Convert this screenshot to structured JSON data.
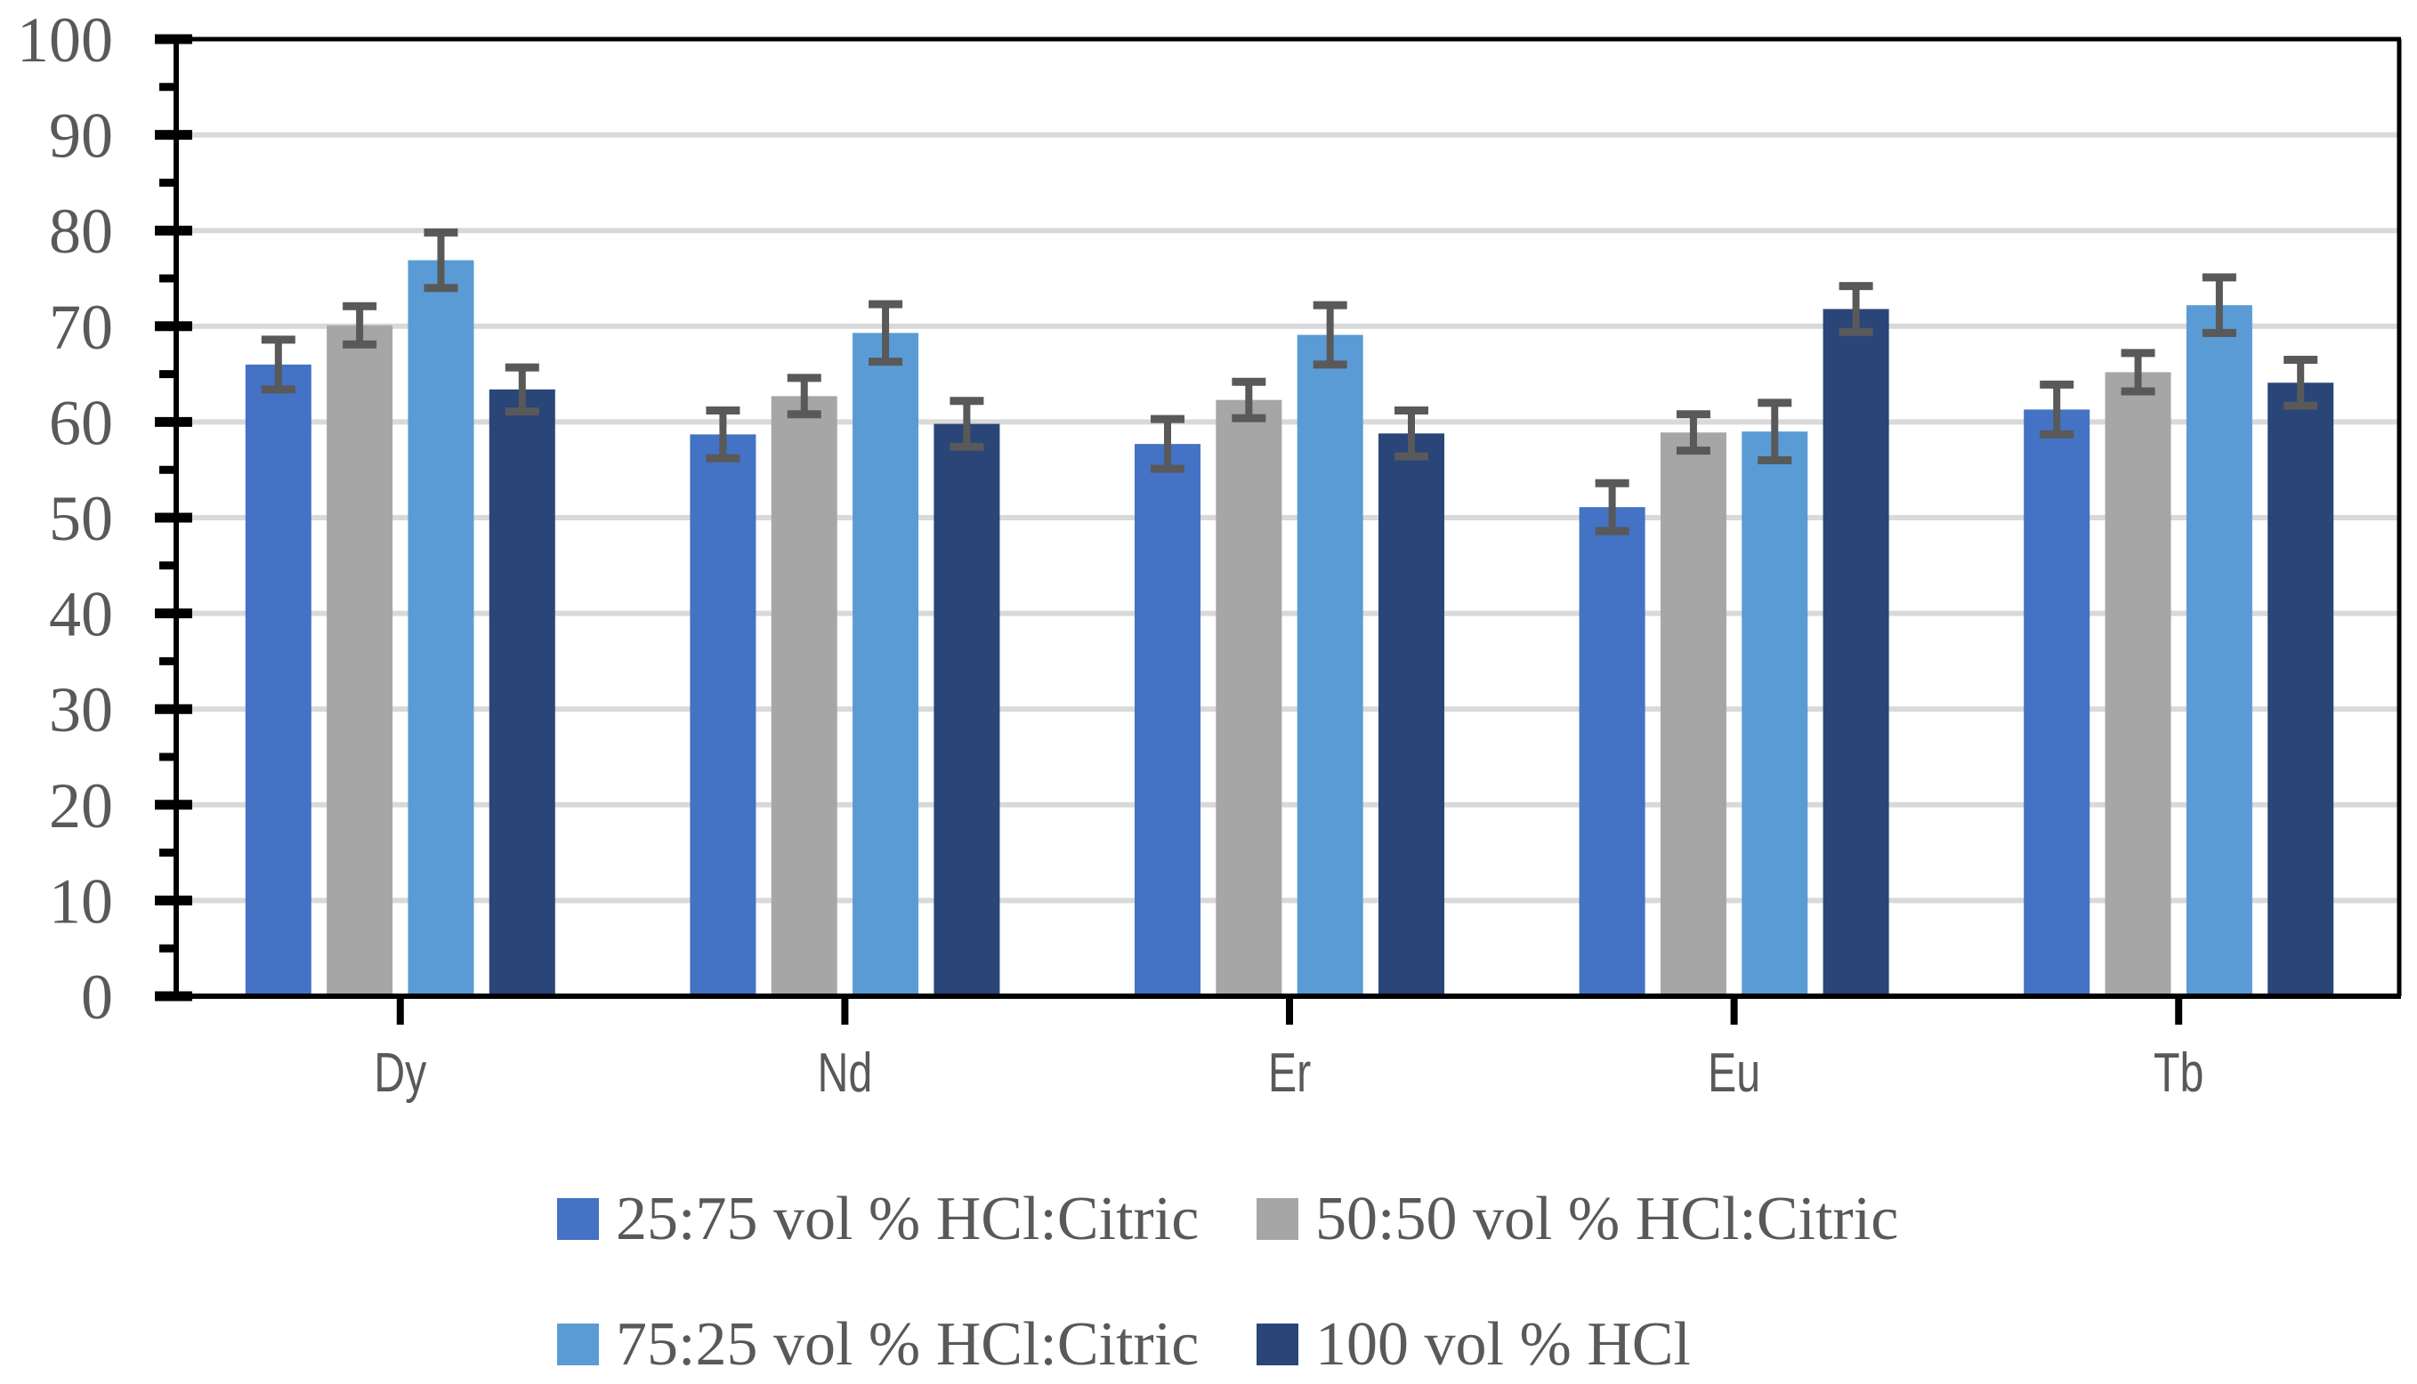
{
  "chart_data": {
    "type": "bar",
    "title": "",
    "xlabel": "",
    "ylabel": "",
    "categories": [
      "Dy",
      "Nd",
      "Er",
      "Eu",
      "Tb"
    ],
    "series": [
      {
        "name": "25:75 vol % HCl:Citric",
        "color": "#4472C4",
        "values": [
          66.0,
          58.7,
          57.7,
          51.1,
          61.3
        ],
        "errors": [
          2.6,
          2.5,
          2.6,
          2.5,
          2.6
        ]
      },
      {
        "name": "50:50 vol % HCl:Citric",
        "color": "#A6A6A6",
        "values": [
          70.1,
          62.7,
          62.3,
          58.9,
          65.2
        ],
        "errors": [
          2.0,
          1.9,
          1.9,
          1.9,
          2.0
        ]
      },
      {
        "name": "75:25 vol % HCl:Citric",
        "color": "#5B9BD5",
        "values": [
          76.9,
          69.3,
          69.1,
          59.0,
          72.2
        ],
        "errors": [
          2.9,
          3.0,
          3.1,
          3.0,
          2.9
        ]
      },
      {
        "name": "100 vol % HCl",
        "color": "#2A4577",
        "values": [
          63.4,
          59.8,
          58.8,
          71.8,
          64.1
        ],
        "errors": [
          2.3,
          2.4,
          2.4,
          2.4,
          2.4
        ]
      }
    ],
    "ylim": [
      0,
      100
    ],
    "y_ticks": [
      0,
      10,
      20,
      30,
      40,
      50,
      60,
      70,
      80,
      90,
      100
    ],
    "y_minor_step": 5,
    "grid": "horizontal",
    "legend_position": "bottom",
    "legend_rows": [
      [
        0,
        1
      ],
      [
        2,
        3
      ]
    ],
    "colors": {
      "grid": "#D9D9D9",
      "axis": "#000000",
      "error_bar": "#595959",
      "tick_label": "#595959",
      "background": "#FFFFFF"
    }
  }
}
